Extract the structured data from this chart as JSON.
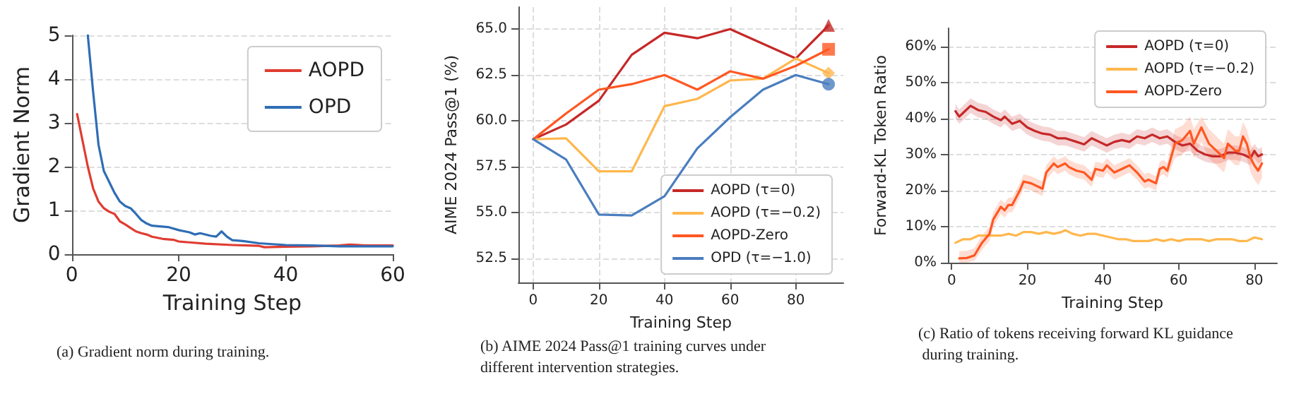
{
  "chart_data": [
    {
      "type": "line",
      "xlabel": "Training Step",
      "ylabel": "Gradient Norm",
      "annotations": [
        "(a) Gradient norm during training."
      ],
      "xlim": [
        0,
        60
      ],
      "xticks": [
        0,
        20,
        40,
        60
      ],
      "ylim": [
        0,
        5
      ],
      "yticks": [
        0,
        1,
        2,
        3,
        4,
        5
      ],
      "grid": "y",
      "legend": "top right",
      "line_style": "solid",
      "series": [
        {
          "name": "AOPD",
          "color": "#e03c31",
          "x": [
            1,
            2,
            3,
            4,
            5,
            6,
            7,
            8,
            9,
            10,
            11,
            12,
            13,
            14,
            15,
            17,
            19,
            20,
            22,
            25,
            30,
            35,
            36,
            40,
            45,
            50,
            52,
            55,
            60
          ],
          "values": [
            3.2,
            2.6,
            2.0,
            1.5,
            1.2,
            1.05,
            0.97,
            0.92,
            0.75,
            0.68,
            0.6,
            0.52,
            0.48,
            0.45,
            0.4,
            0.35,
            0.33,
            0.29,
            0.27,
            0.24,
            0.21,
            0.19,
            0.16,
            0.17,
            0.18,
            0.2,
            0.22,
            0.2,
            0.2
          ]
        },
        {
          "name": "OPD",
          "color": "#2f6db5",
          "x": [
            3,
            4,
            5,
            6,
            7,
            8,
            9,
            10,
            11,
            12,
            13,
            14,
            15,
            18,
            20,
            22,
            23,
            24,
            26,
            27,
            28,
            29,
            30,
            32,
            35,
            40,
            45,
            50,
            55,
            60
          ],
          "values": [
            5.0,
            3.7,
            2.5,
            1.9,
            1.65,
            1.4,
            1.2,
            1.1,
            1.05,
            0.92,
            0.78,
            0.7,
            0.65,
            0.62,
            0.55,
            0.5,
            0.45,
            0.48,
            0.42,
            0.4,
            0.52,
            0.4,
            0.32,
            0.3,
            0.25,
            0.21,
            0.2,
            0.18,
            0.18,
            0.18
          ]
        }
      ]
    },
    {
      "type": "line",
      "xlabel": "Training Step",
      "ylabel": "AIME 2024 Pass@1 (%)",
      "annotations": [
        "(b) AIME 2024 Pass@1 training curves under different intervention strategies."
      ],
      "xlim": [
        -4.5,
        94.5
      ],
      "xticks": [
        0,
        20,
        40,
        60,
        80
      ],
      "ylim": [
        51.2,
        66.2
      ],
      "yticks": [
        {
          "value": 52.5,
          "label": "52.5"
        },
        {
          "value": 55,
          "label": "55.0"
        },
        {
          "value": 57.5,
          "label": "57.5"
        },
        {
          "value": 60,
          "label": "60.0"
        },
        {
          "value": 62.5,
          "label": "62.5"
        },
        {
          "value": 65,
          "label": "65.0"
        }
      ],
      "grid": true,
      "legend": "bottom right",
      "line_style": "solid",
      "x": [
        0,
        10,
        20,
        30,
        40,
        50,
        60,
        70,
        80,
        90
      ],
      "series": [
        {
          "name": "AOPD (τ=0)",
          "color": "#c62828",
          "values": [
            59.0,
            59.8,
            61.1,
            63.6,
            64.8,
            64.5,
            65.0,
            64.2,
            63.4,
            65.2
          ]
        },
        {
          "name": "AOPD (τ=−0.2)",
          "color": "#ffb74d",
          "values": [
            59.0,
            59.05,
            57.25,
            57.25,
            60.8,
            61.2,
            62.2,
            62.3,
            63.4,
            62.6
          ]
        },
        {
          "name": "AOPD-Zero",
          "color": "#ff5722",
          "values": [
            59.0,
            60.4,
            61.7,
            62.0,
            62.5,
            61.7,
            62.7,
            62.3,
            63.0,
            63.9
          ]
        },
        {
          "name": "OPD (τ=−1.0)",
          "color": "#4a7ebf",
          "values": [
            59.0,
            57.9,
            54.9,
            54.85,
            55.9,
            58.5,
            60.2,
            61.7,
            62.5,
            62.0
          ]
        },
        {
          "type": "scatter",
          "color": "#c62828",
          "marker": "triangle",
          "x": [
            90
          ],
          "values": [
            65.2
          ]
        },
        {
          "type": "scatter",
          "color": "#ffb74d",
          "marker": "diamond",
          "x": [
            90
          ],
          "values": [
            62.6
          ]
        },
        {
          "type": "scatter",
          "color": "#ff5722",
          "marker": "square",
          "x": [
            90
          ],
          "values": [
            63.9
          ]
        },
        {
          "type": "scatter",
          "color": "#4a7ebf",
          "marker": "circle",
          "x": [
            90
          ],
          "values": [
            62.0
          ]
        }
      ]
    },
    {
      "type": "line",
      "xlabel": "Training Step",
      "ylabel": "Forward-KL Token Ratio",
      "annotations": [
        "(c) Ratio of tokens receiving forward KL guidance during training."
      ],
      "xlim": [
        -1,
        86
      ],
      "xticks": [
        0,
        20,
        40,
        60,
        80
      ],
      "ylim": [
        0,
        65
      ],
      "yticks": [
        {
          "value": 0,
          "label": "0%"
        },
        {
          "value": 10,
          "label": "10%"
        },
        {
          "value": 20,
          "label": "20%"
        },
        {
          "value": 30,
          "label": "30%"
        },
        {
          "value": 40,
          "label": "40%"
        },
        {
          "value": 50,
          "label": "50%"
        },
        {
          "value": 60,
          "label": "60%"
        }
      ],
      "grid": "y",
      "legend": "top right",
      "line_style": "solid",
      "series": [
        {
          "name": "AOPD (τ=0)",
          "color": "#c62828",
          "x": [
            1,
            2,
            3,
            5,
            7,
            9,
            11,
            13,
            14,
            16,
            18,
            20,
            22,
            24,
            26,
            28,
            30,
            33,
            35,
            37,
            39,
            41,
            43,
            45,
            47,
            49,
            51,
            53,
            55,
            57,
            59,
            61,
            63,
            65,
            67,
            69,
            71,
            73,
            75,
            77,
            79,
            80,
            81,
            82
          ],
          "values": [
            42,
            40.5,
            41.5,
            43.5,
            42.3,
            41.8,
            40.5,
            39.5,
            40.5,
            38.5,
            39.3,
            37.5,
            36.5,
            35.8,
            35.5,
            34.5,
            34.5,
            33.5,
            32.8,
            34.5,
            33.5,
            32.5,
            33.5,
            34,
            33.5,
            35,
            34.5,
            35.5,
            34.5,
            35,
            33.5,
            32.5,
            33,
            31,
            30,
            29.5,
            29.5,
            30.5,
            30.5,
            30,
            29,
            31,
            29.5,
            30
          ],
          "lower": [
            40,
            38.5,
            39.5,
            41.5,
            40.3,
            39.8,
            38.5,
            37.5,
            38.5,
            36.5,
            37.3,
            35.5,
            34.5,
            33.8,
            33.5,
            32.5,
            32.5,
            31.5,
            30.8,
            32.5,
            31.5,
            30.5,
            31.5,
            32,
            31.5,
            33,
            32.5,
            33.5,
            32.5,
            33,
            31.5,
            30.5,
            31,
            29,
            28,
            27.5,
            27.5,
            28.5,
            28.5,
            28,
            27,
            29,
            27.5,
            28
          ],
          "upper": [
            44,
            42.5,
            43.5,
            45.5,
            44.3,
            43.8,
            42.5,
            41.5,
            42.5,
            40.5,
            41.3,
            39.5,
            38.5,
            37.8,
            37.5,
            36.5,
            36.5,
            35.5,
            34.8,
            36.5,
            35.5,
            34.5,
            35.5,
            36,
            35.5,
            37,
            36.5,
            37.5,
            36.5,
            37,
            35.5,
            34.5,
            35,
            33,
            32,
            31.5,
            31.5,
            32.5,
            32.5,
            32,
            31,
            33,
            31.5,
            32
          ]
        },
        {
          "name": "AOPD (τ=−0.2)",
          "color": "#ffb74d",
          "x": [
            1,
            3,
            5,
            7,
            10,
            13,
            15,
            17,
            19,
            21,
            23,
            25,
            27,
            29,
            30,
            32,
            34,
            36,
            38,
            40,
            42,
            44,
            46,
            48,
            50,
            52,
            54,
            56,
            58,
            60,
            62,
            64,
            66,
            68,
            70,
            72,
            74,
            76,
            78,
            80,
            82
          ],
          "values": [
            5.5,
            6.5,
            6.5,
            7.5,
            7.5,
            7.5,
            8,
            7.5,
            8.5,
            8.5,
            8,
            8.5,
            8,
            8.5,
            9,
            8,
            7.5,
            8,
            8,
            7.5,
            7,
            6.5,
            6.5,
            6,
            6,
            6,
            6.5,
            6,
            6.5,
            6,
            6.5,
            6.5,
            6.5,
            6,
            6.5,
            6.5,
            6.5,
            6,
            6,
            7,
            6.5
          ]
        },
        {
          "name": "AOPD-Zero",
          "color": "#ff5722",
          "x": [
            2,
            4,
            6,
            8,
            10,
            11,
            13,
            14,
            15,
            16,
            18,
            19,
            21,
            23,
            24,
            25,
            27,
            28,
            30,
            31,
            33,
            35,
            37,
            38,
            40,
            41,
            43,
            45,
            47,
            49,
            51,
            52,
            54,
            55,
            56,
            57,
            59,
            61,
            63,
            64,
            66,
            68,
            70,
            72,
            73,
            75,
            76,
            77,
            78,
            79,
            80,
            81,
            82
          ],
          "values": [
            1.2,
            1.3,
            2,
            5.5,
            8,
            12,
            15.5,
            14.5,
            16,
            16,
            20,
            22.5,
            22,
            21,
            20.5,
            25,
            27.5,
            26.5,
            27.5,
            26.5,
            25.5,
            25,
            23,
            26,
            25.5,
            27,
            25,
            26,
            27,
            25,
            22.5,
            23,
            22,
            26,
            26.5,
            25.5,
            33,
            34,
            36.5,
            33,
            37.5,
            33,
            31,
            29,
            33,
            31,
            31,
            35,
            33,
            29,
            27,
            25.5,
            27.5
          ],
          "lower": [
            0,
            0,
            0.5,
            3.5,
            6,
            10,
            13.5,
            12.5,
            14,
            14,
            18,
            20.5,
            20,
            19,
            18.5,
            23,
            25.5,
            24.5,
            25.5,
            24.5,
            23.5,
            23,
            21,
            24,
            23.5,
            25,
            23,
            24,
            25,
            23,
            20.5,
            21,
            20,
            24,
            24.5,
            23.5,
            29,
            30,
            32.5,
            29,
            33.5,
            29,
            27,
            25,
            29,
            27,
            27,
            31,
            29,
            25,
            23,
            21.5,
            23.5
          ],
          "upper": [
            3.2,
            3.3,
            4,
            7.5,
            10,
            14,
            17.5,
            16.5,
            18,
            18,
            22,
            24.5,
            24,
            23,
            22.5,
            27,
            29.5,
            28.5,
            29.5,
            28.5,
            27.5,
            27,
            25,
            28,
            27.5,
            29,
            27,
            28,
            29,
            27,
            24.5,
            25,
            24,
            28,
            28.5,
            27.5,
            37,
            38,
            40.5,
            37,
            40.5,
            37,
            35,
            33,
            37,
            35,
            35,
            39,
            37,
            33,
            31,
            29.5,
            31.5
          ]
        }
      ]
    }
  ]
}
